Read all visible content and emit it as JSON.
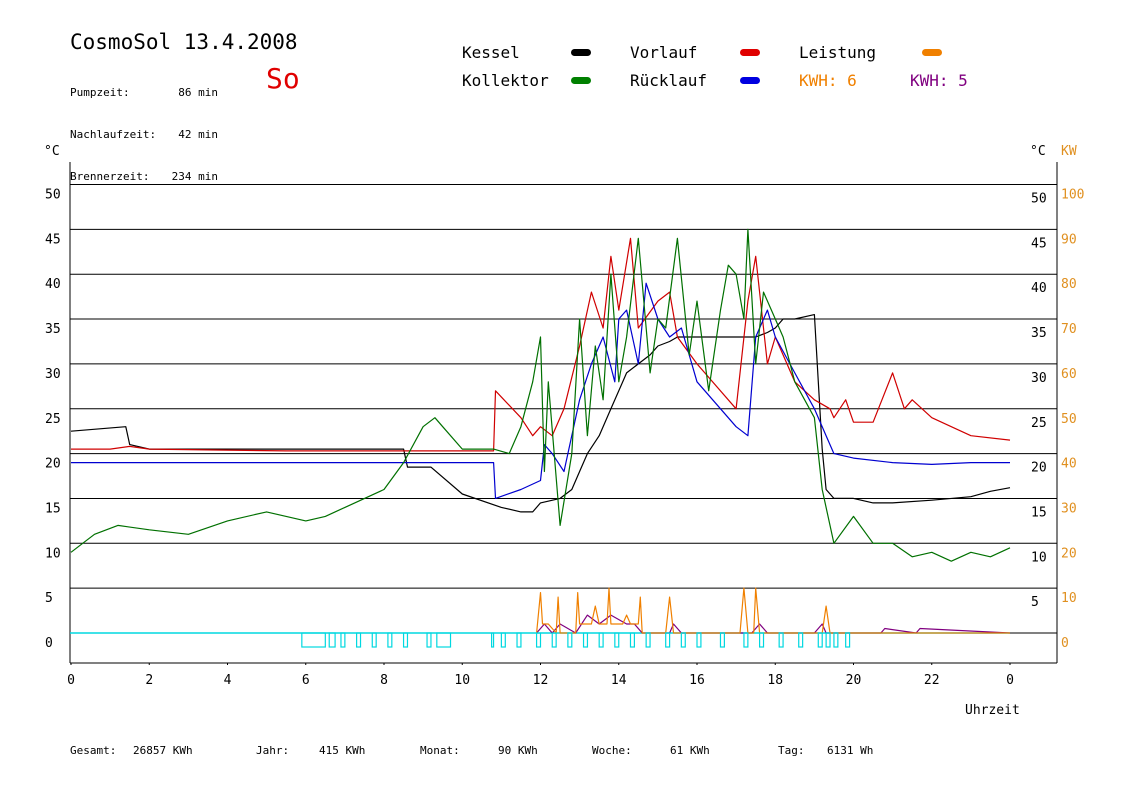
{
  "header": {
    "title": "CosmoSol 13.4.2008",
    "day": "So",
    "info": [
      {
        "label": "Pumpzeit:",
        "value": "86 min"
      },
      {
        "label": "Nachlaufzeit:",
        "value": "42 min"
      },
      {
        "label": "Brennerzeit:",
        "value": "234 min"
      }
    ]
  },
  "legend": {
    "items": [
      {
        "label": "Kessel",
        "color": "#000000"
      },
      {
        "label": "Vorlauf",
        "color": "#e00000"
      },
      {
        "label": "Leistung",
        "color": "#f08000"
      },
      {
        "label": "Kollektor",
        "color": "#008000"
      },
      {
        "label": "Rücklauf",
        "color": "#0000e0"
      }
    ],
    "kwh_orange": "KWH: 6",
    "kwh_purple": "KWH: 5"
  },
  "colors": {
    "kessel": "#000000",
    "vorlauf": "#d00000",
    "ruecklauf": "#0000d0",
    "kollektor": "#007000",
    "leistung": "#f08000",
    "purple": "#800080",
    "pump": "#00d8e0"
  },
  "footer": {
    "items": [
      {
        "label": "Gesamt:",
        "value": "26857 KWh"
      },
      {
        "label": "Jahr:",
        "value": "415 KWh"
      },
      {
        "label": "Monat:",
        "value": "90 KWh"
      },
      {
        "label": "Woche:",
        "value": "61 KWh"
      },
      {
        "label": "Tag:",
        "value": "6131 Wh"
      }
    ]
  },
  "chart_data": {
    "type": "line",
    "xlabel": "Uhrzeit",
    "x_ticks": [
      "0",
      "2",
      "4",
      "6",
      "8",
      "10",
      "12",
      "14",
      "16",
      "18",
      "20",
      "22",
      "0"
    ],
    "xlim": [
      0,
      24
    ],
    "ylim": [
      -3.5,
      52
    ],
    "left_axis": {
      "unit": "°C",
      "ticks": [
        0,
        5,
        10,
        15,
        20,
        25,
        30,
        35,
        40,
        45,
        50
      ]
    },
    "right_axis": {
      "unit": "°C",
      "ticks": [
        5,
        10,
        15,
        20,
        25,
        30,
        35,
        40,
        45,
        50
      ]
    },
    "right_axis2": {
      "unit": "KW",
      "ticks": [
        0,
        10,
        20,
        30,
        40,
        50,
        60,
        70,
        80,
        90,
        100
      ]
    },
    "grid": true,
    "series": [
      {
        "name": "Kessel",
        "key": "kessel",
        "x": [
          0,
          1.4,
          1.5,
          2.0,
          8.5,
          8.6,
          9.2,
          10.0,
          11.0,
          11.5,
          11.8,
          12.0,
          12.5,
          12.8,
          13.0,
          13.2,
          13.5,
          13.8,
          14.0,
          14.2,
          14.5,
          14.8,
          15.0,
          15.3,
          15.5,
          16.0,
          17.0,
          17.5,
          17.8,
          18.0,
          18.2,
          18.5,
          19.0,
          19.2,
          19.3,
          19.5,
          20.0,
          20.5,
          21.0,
          22.0,
          23.0,
          23.5,
          24.0
        ],
        "y": [
          22.5,
          23,
          21,
          20.5,
          20.5,
          18.5,
          18.5,
          15.5,
          14,
          13.5,
          13.5,
          14.5,
          15,
          16,
          18,
          20,
          22,
          25,
          27,
          29,
          30,
          31,
          32,
          32.5,
          33,
          33,
          33,
          33,
          33.5,
          34,
          35,
          35,
          35.5,
          20.5,
          16,
          15,
          15,
          14.5,
          14.5,
          14.8,
          15.2,
          15.8,
          16.2
        ]
      },
      {
        "name": "Vorlauf",
        "key": "vorlauf",
        "x": [
          0,
          1.0,
          1.5,
          2.0,
          5.5,
          6.0,
          8.6,
          10.8,
          10.85,
          11.5,
          11.8,
          12.0,
          12.3,
          12.6,
          13.0,
          13.3,
          13.6,
          13.8,
          14.0,
          14.3,
          14.5,
          15.0,
          15.3,
          15.5,
          16.0,
          17.0,
          17.3,
          17.5,
          17.8,
          18.0,
          18.5,
          19.0,
          19.4,
          19.5,
          19.8,
          20.0,
          20.5,
          21.0,
          21.3,
          21.5,
          22.0,
          22.5,
          23.0,
          24.0
        ],
        "y": [
          20.5,
          20.5,
          20.8,
          20.5,
          20.3,
          20.3,
          20.3,
          20.3,
          27,
          24,
          22,
          23,
          22,
          25,
          32,
          38,
          34,
          42,
          36,
          44,
          34,
          37,
          38,
          33,
          30,
          25,
          37,
          42,
          30,
          33,
          28,
          26,
          25,
          24,
          26,
          23.5,
          23.5,
          29,
          25,
          26,
          24,
          23,
          22,
          21.5
        ]
      },
      {
        "name": "Rücklauf",
        "key": "ruecklauf",
        "x": [
          0,
          2.0,
          8.5,
          10.8,
          10.85,
          11.5,
          12.0,
          12.1,
          12.3,
          12.6,
          13.0,
          13.3,
          13.6,
          13.9,
          14.0,
          14.2,
          14.5,
          14.7,
          15.0,
          15.3,
          15.6,
          16.0,
          17.0,
          17.3,
          17.5,
          17.8,
          18.0,
          18.5,
          19.0,
          19.3,
          19.5,
          20.0,
          21.0,
          22.0,
          23.0,
          24.0
        ],
        "y": [
          19,
          19,
          19,
          19,
          15,
          16,
          17,
          21,
          20,
          18,
          26,
          30,
          33,
          28,
          35,
          36,
          30,
          39,
          35,
          33,
          34,
          28,
          23,
          22,
          33,
          36,
          33,
          29,
          25,
          22,
          20,
          19.5,
          19,
          18.8,
          19,
          19
        ]
      },
      {
        "name": "Kollektor",
        "key": "kollektor",
        "x": [
          0,
          0.3,
          0.6,
          1.2,
          2.0,
          3.0,
          4.0,
          5.0,
          6.0,
          6.5,
          7.0,
          8.0,
          8.5,
          9.0,
          9.3,
          9.5,
          10.0,
          10.8,
          11.2,
          11.5,
          11.8,
          12.0,
          12.1,
          12.2,
          12.5,
          12.8,
          13.0,
          13.2,
          13.4,
          13.6,
          13.8,
          14.0,
          14.2,
          14.5,
          14.8,
          15.0,
          15.2,
          15.5,
          15.8,
          16.0,
          16.3,
          16.6,
          16.8,
          17.0,
          17.2,
          17.3,
          17.5,
          17.7,
          18.0,
          18.2,
          18.5,
          19.0,
          19.2,
          19.5,
          20.0,
          20.5,
          21.0,
          21.5,
          22.0,
          22.5,
          23.0,
          23.5,
          24.0
        ],
        "y": [
          9,
          10,
          11,
          12,
          11.5,
          11,
          12.5,
          13.5,
          12.5,
          13,
          14,
          16,
          19,
          23,
          24,
          23,
          20.5,
          20.5,
          20,
          23,
          28,
          33,
          18,
          28,
          12,
          20,
          35,
          22,
          32,
          26,
          40,
          28,
          33,
          44,
          29,
          35,
          34,
          44,
          31,
          37,
          27,
          36,
          41,
          40,
          35,
          45,
          30,
          38,
          35,
          33,
          28,
          24,
          16,
          10,
          13,
          10,
          10,
          8.5,
          9,
          8,
          9,
          8.5,
          9.5
        ]
      },
      {
        "name": "Leistung",
        "key": "leistung",
        "x": [
          11.9,
          12.0,
          12.05,
          12.2,
          12.4,
          12.45,
          12.5,
          12.9,
          12.95,
          13.0,
          13.3,
          13.4,
          13.5,
          13.7,
          13.75,
          13.8,
          14.1,
          14.2,
          14.3,
          14.5,
          14.55,
          14.6,
          15.0,
          15.2,
          15.3,
          15.4,
          16.0,
          17.1,
          17.2,
          17.3,
          17.45,
          17.5,
          17.6,
          19.2,
          19.3,
          19.4,
          19.6,
          24.0
        ],
        "y": [
          0,
          4.5,
          1,
          1,
          0,
          4,
          0,
          0,
          4.5,
          1,
          1,
          3,
          1,
          1,
          5,
          1,
          1,
          2,
          1,
          1,
          4,
          0,
          0,
          0,
          4,
          0,
          0,
          0,
          5,
          0,
          0,
          5,
          0,
          0,
          3,
          0,
          0,
          0
        ]
      },
      {
        "name": "",
        "key": "purple",
        "x": [
          11.9,
          12.1,
          12.3,
          12.5,
          12.9,
          13.2,
          13.5,
          13.8,
          14.2,
          14.4,
          14.6,
          15.3,
          15.4,
          15.6,
          17.4,
          17.6,
          17.8,
          19.0,
          19.2,
          19.3,
          19.5,
          20.7,
          20.8,
          21.6,
          21.7,
          24.0
        ],
        "y": [
          0,
          1,
          0,
          1,
          0,
          2,
          1,
          2,
          1,
          1,
          0,
          0,
          1,
          0,
          0,
          1,
          0,
          0,
          1,
          0,
          0,
          0,
          0.5,
          0,
          0.5,
          0
        ]
      },
      {
        "name": "",
        "key": "pump",
        "type": "pulses",
        "pulses": [
          [
            5.9,
            6.5
          ],
          [
            6.6,
            6.75
          ],
          [
            6.9,
            7.0
          ],
          [
            7.3,
            7.4
          ],
          [
            7.7,
            7.8
          ],
          [
            8.1,
            8.2
          ],
          [
            8.5,
            8.6
          ],
          [
            9.1,
            9.2
          ],
          [
            9.35,
            9.7
          ],
          [
            10.75,
            10.8
          ],
          [
            11.0,
            11.1
          ],
          [
            11.4,
            11.5
          ],
          [
            11.9,
            12.0
          ],
          [
            12.3,
            12.4
          ],
          [
            12.7,
            12.8
          ],
          [
            13.1,
            13.2
          ],
          [
            13.5,
            13.6
          ],
          [
            13.9,
            14.0
          ],
          [
            14.3,
            14.4
          ],
          [
            14.7,
            14.8
          ],
          [
            15.2,
            15.3
          ],
          [
            15.6,
            15.7
          ],
          [
            16.0,
            16.1
          ],
          [
            16.6,
            16.7
          ],
          [
            17.2,
            17.3
          ],
          [
            17.6,
            17.7
          ],
          [
            18.1,
            18.2
          ],
          [
            18.6,
            18.7
          ],
          [
            19.1,
            19.2
          ],
          [
            19.3,
            19.4
          ],
          [
            19.5,
            19.6
          ],
          [
            19.8,
            19.9
          ]
        ]
      }
    ]
  }
}
